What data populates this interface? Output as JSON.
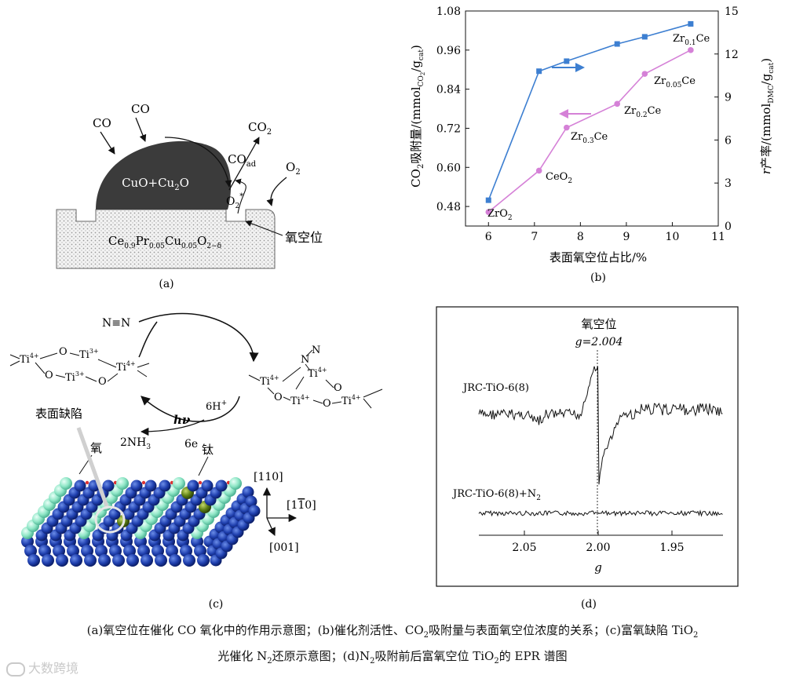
{
  "panel_a": {
    "label": "(a)",
    "co1": "CO",
    "co2_label": "CO",
    "co2_product_base": "CO",
    "co2_product_sub": "2",
    "co_ad_base": "CO",
    "co_ad_sub": "ad",
    "o2_base": "O",
    "o2_sub": "2",
    "o2_star_base": "O",
    "o2_star_sub": "2",
    "o2_star_sup": "*",
    "particle_base": "CuO+Cu",
    "particle_sub": "2",
    "particle_end": "O",
    "support_t1": "Ce",
    "support_s1": "0.9",
    "support_t2": "Pr",
    "support_s2": "0.05",
    "support_t3": "Cu",
    "support_s3": "0.05",
    "support_t4": "O",
    "support_s4": "2−δ",
    "vacancy_label": "氧空位"
  },
  "panel_b": {
    "label": "(b)",
    "xlabel": "表面氧空位占比/%",
    "ylabel_left": "CO₂吸附量/(mmol_CO₂/g_cat)",
    "ylabel_left_main": "CO",
    "ylabel_left_rest": "吸附量/(mmol",
    "ylabel_left_sub1": "CO",
    "ylabel_left_sub1b": "2",
    "ylabel_left_end": "/g",
    "ylabel_left_sub2": "cat",
    "ylabel_right_main": "产率/(mmol",
    "ylabel_right_sub1": "DMC",
    "ylabel_right_mid": "/g",
    "ylabel_right_sub2": "cat",
    "ylabel_right_pre": "r",
    "x_ticks": [
      "6",
      "7",
      "8",
      "9",
      "10",
      "11"
    ],
    "left_ticks": [
      "0.48",
      "0.60",
      "0.72",
      "0.84",
      "0.96",
      "1.08"
    ],
    "right_ticks": [
      "0",
      "3",
      "6",
      "9",
      "12",
      "15"
    ],
    "point_labels": [
      {
        "base": "ZrO",
        "sub": "2",
        "end": ""
      },
      {
        "base": "CeO",
        "sub": "2",
        "end": ""
      },
      {
        "base": "Zr",
        "sub": "0.3",
        "end": "Ce"
      },
      {
        "base": "Zr",
        "sub": "0.2",
        "end": "Ce"
      },
      {
        "base": "Zr",
        "sub": "0.05",
        "end": "Ce"
      },
      {
        "base": "Zr",
        "sub": "0.1",
        "end": "Ce"
      }
    ]
  },
  "chart_data": {
    "type": "line",
    "title": "",
    "xlabel": "表面氧空位占比/%",
    "xlim": [
      5.5,
      11
    ],
    "ylabel_left": "CO₂吸附量/(mmol_CO₂/g_cat)",
    "ylim_left": [
      0.42,
      1.08
    ],
    "ylabel_right": "r产率/(mmol_DMC/g_cat)",
    "ylim_right": [
      0,
      15
    ],
    "series": [
      {
        "axis": "right",
        "color": "#3d7fd1",
        "marker": "square",
        "x": [
          6.0,
          7.1,
          7.7,
          8.8,
          9.4,
          10.4
        ],
        "y": [
          1.8,
          10.8,
          11.5,
          12.7,
          13.2,
          14.1
        ]
      },
      {
        "axis": "left",
        "color": "#d581d7",
        "marker": "circle",
        "x": [
          6.0,
          7.1,
          7.7,
          8.8,
          9.4,
          10.4
        ],
        "y": [
          0.463,
          0.59,
          0.722,
          0.795,
          0.887,
          0.96
        ]
      }
    ],
    "grid": false
  },
  "panel_c": {
    "label": "(c)",
    "n2": "N≡N",
    "ti4a": "Ti",
    "ti4a_sup": "4+",
    "o1": "O",
    "ti3a": "Ti",
    "ti3a_sup": "3+",
    "o2": "O",
    "ti3b": "Ti",
    "ti3b_sup": "3+",
    "o3": "O",
    "ti4b": "Ti",
    "ti4b_sup": "4+",
    "right_ti1": "Ti",
    "right_ti1_sup": "4+",
    "right_ti2": "Ti",
    "right_ti2_sup": "4+",
    "right_ti3": "Ti",
    "right_ti3_sup": "4+",
    "right_ti4": "Ti",
    "right_ti4_sup": "4+",
    "right_n1": "N",
    "right_n2": "N",
    "right_o1": "O",
    "right_o2": "O",
    "right_o3": "O",
    "h_base": "6H",
    "h_sup": "+",
    "hv": "hν",
    "nh3_base": "2NH",
    "nh3_sub": "3",
    "electrons": "6e",
    "defect_label": "表面缺陷",
    "oxygen_label": "氧",
    "titanium_label": "钛",
    "dir1": "[110]",
    "dir2_pre": "[1",
    "dir2_bar": "1",
    "dir2_end": "0]",
    "dir3": "[001]"
  },
  "panel_d": {
    "label": "(d)",
    "peak_label": "氧空位",
    "g_value": "g=2.004",
    "trace1": "JRC-TiO-6(8)",
    "trace2": "JRC-TiO-6(8)+N",
    "trace2_sub": "2",
    "x_ticks": [
      "2.05",
      "2.00",
      "1.95"
    ],
    "xlabel": "g"
  },
  "caption": {
    "line1_a": "(a)氧空位在催化 CO 氧化中的作用示意图；(b)催化剂活性、CO",
    "line1_a_sub": "2",
    "line1_b": "吸附量与表面氧空位浓度的关系；(c)富氧缺陷 TiO",
    "line1_b_sub": "2",
    "line2_a": "光催化 N",
    "line2_a_sub": "2",
    "line2_b": "还原示意图；(d)N",
    "line2_b_sub": "2",
    "line2_c": "吸附前后富氧空位 TiO",
    "line2_c_sub": "2",
    "line2_d": "的 EPR 谱图"
  },
  "watermark": "大数跨境"
}
